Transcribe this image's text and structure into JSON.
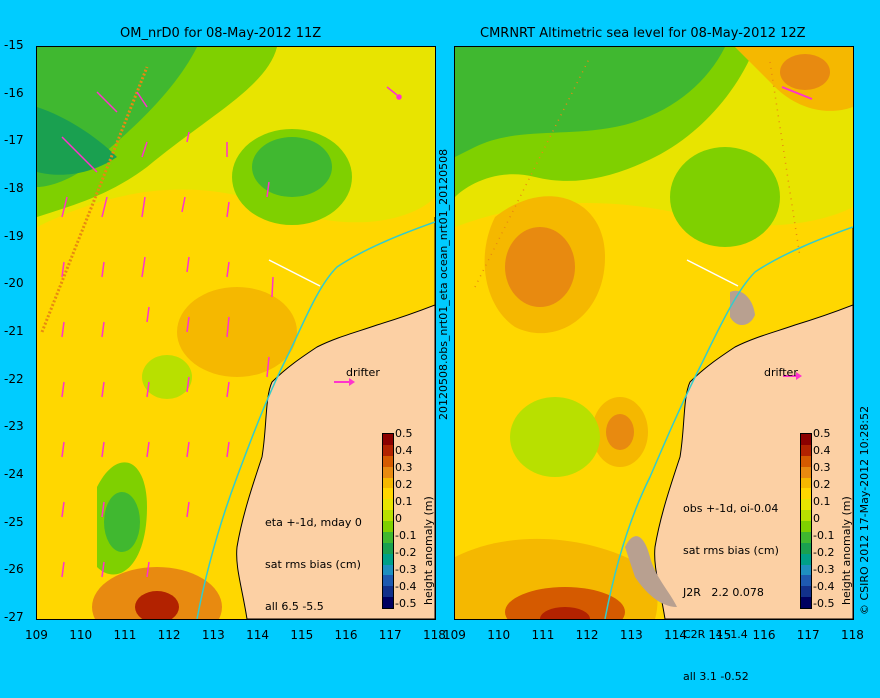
{
  "left_panel": {
    "title": "OM_nrD0 for 08-May-2012 11Z",
    "drifter_label": "drifter",
    "stats": [
      "eta +-1d, mday 0",
      "sat rms bias (cm)",
      "all 6.5 -5.5"
    ],
    "colorbar_title": "height anomaly (m)"
  },
  "right_panel": {
    "title": "CMRNRT Altimetric sea level  for 08-May-2012 12Z",
    "drifter_label": "drifter",
    "stats": [
      "obs +-1d, oi-0.04",
      "sat rms bias (cm)",
      "J2R   2.2 0.078",
      "C2R   4 -1.4",
      "all 3.1 -0.52"
    ],
    "colorbar_title": "height anomaly (m)"
  },
  "side_labels": {
    "middle": "20120508.obs_nrt01_eta     ocean_nrt01_20120508",
    "right": "© CSIRO 2012  17-May-2012 10:28:52"
  },
  "axes": {
    "lat_ticks": [
      "-15",
      "-16",
      "-17",
      "-18",
      "-19",
      "-20",
      "-21",
      "-22",
      "-23",
      "-24",
      "-25",
      "-26",
      "-27"
    ],
    "lon_ticks": [
      "109",
      "110",
      "111",
      "112",
      "113",
      "114",
      "115",
      "116",
      "117",
      "118"
    ],
    "lat_range": [
      -27,
      -15
    ],
    "lon_range": [
      109,
      118
    ]
  },
  "colorbar": {
    "labels": [
      "0.5",
      "0.4",
      "0.3",
      "0.2",
      "0.1",
      "0",
      "-0.1",
      "-0.2",
      "-0.3",
      "-0.4",
      "-0.5"
    ],
    "colors": [
      "#8b0000",
      "#b22200",
      "#d55a00",
      "#e88a10",
      "#f5b800",
      "#ffd700",
      "#e8e400",
      "#b8e000",
      "#7fd000",
      "#40b830",
      "#1aa050",
      "#00a088",
      "#1e90c0",
      "#1e5ab0",
      "#12308a",
      "#000060"
    ]
  },
  "colors": {
    "background": "#00ccff",
    "land": "#fcd0a4",
    "coast": "#000000",
    "vector": "#ff33cc",
    "isobath": "#33cccc"
  }
}
